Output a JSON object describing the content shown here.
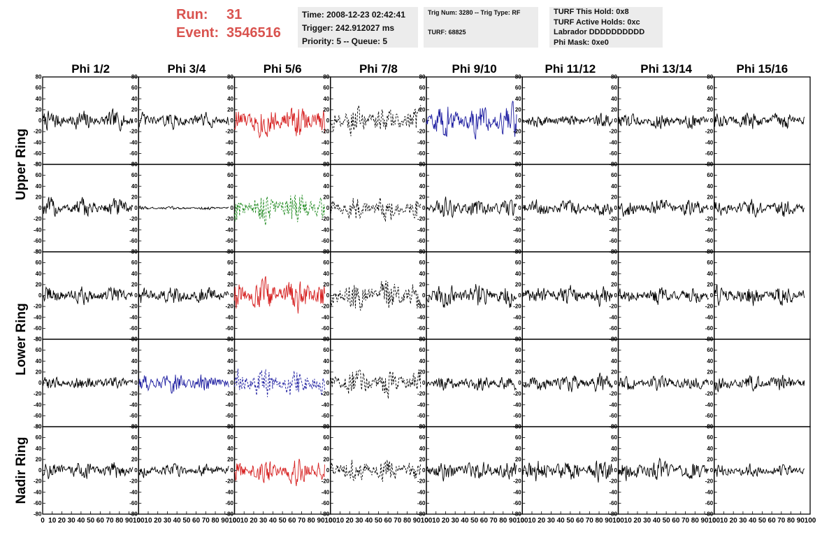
{
  "header": {
    "run_label": "Run:",
    "run_value": "31",
    "event_label": "Event:",
    "event_value": "3546516",
    "time_line": "Time: 2008-12-23 02:42:41",
    "trigger_line": "Trigger: 242.912027 ms",
    "priority_line": "Priority: 5 -- Queue: 5",
    "trig_num_line": "Trig Num: 3280 -- Trig Type: RF",
    "turf_line": "TURF: 68825",
    "turf_this_hold": "TURF This Hold: 0x8",
    "turf_active_holds": "TURF Active Holds: 0xc",
    "labrador": "Labrador DDDDDDDDDD",
    "phi_mask": "Phi Mask: 0xe0"
  },
  "chart_data": {
    "type": "line",
    "columns": [
      "Phi 1/2",
      "Phi 3/4",
      "Phi 5/6",
      "Phi 7/8",
      "Phi 9/10",
      "Phi 11/12",
      "Phi 13/14",
      "Phi 15/16"
    ],
    "ring_labels": [
      {
        "text": "Upper Ring",
        "rows": [
          0,
          1
        ]
      },
      {
        "text": "Lower Ring",
        "rows": [
          2,
          3
        ]
      },
      {
        "text": "Nadir Ring",
        "rows": [
          4
        ]
      }
    ],
    "xlim": [
      0,
      100
    ],
    "ylim": [
      -80,
      80
    ],
    "x_ticks": [
      0,
      10,
      20,
      30,
      40,
      50,
      60,
      70,
      80,
      90,
      100
    ],
    "y_ticks": [
      -80,
      -60,
      -40,
      -20,
      0,
      20,
      40,
      60,
      80
    ],
    "colors": {
      "black": "#000000",
      "red": "#d62020",
      "blue": "#1c1ca0",
      "green": "#1f8a1f"
    },
    "panels": [
      [
        {
          "color": "black",
          "dash": false,
          "amp": 18
        },
        {
          "color": "black",
          "dash": false,
          "amp": 14
        },
        {
          "color": "red",
          "dash": false,
          "amp": 30
        },
        {
          "color": "black",
          "dash": true,
          "amp": 26
        },
        {
          "color": "blue",
          "dash": false,
          "amp": 30
        },
        {
          "color": "black",
          "dash": false,
          "amp": 12
        },
        {
          "color": "black",
          "dash": false,
          "amp": 14
        },
        {
          "color": "black",
          "dash": false,
          "amp": 16
        }
      ],
      [
        {
          "color": "black",
          "dash": false,
          "amp": 18
        },
        {
          "color": "black",
          "dash": false,
          "amp": 3
        },
        {
          "color": "green",
          "dash": true,
          "amp": 28
        },
        {
          "color": "black",
          "dash": true,
          "amp": 22
        },
        {
          "color": "black",
          "dash": false,
          "amp": 18
        },
        {
          "color": "black",
          "dash": false,
          "amp": 16
        },
        {
          "color": "black",
          "dash": false,
          "amp": 16
        },
        {
          "color": "black",
          "dash": false,
          "amp": 16
        }
      ],
      [
        {
          "color": "black",
          "dash": false,
          "amp": 16
        },
        {
          "color": "black",
          "dash": false,
          "amp": 16
        },
        {
          "color": "red",
          "dash": false,
          "amp": 30
        },
        {
          "color": "black",
          "dash": true,
          "amp": 28
        },
        {
          "color": "black",
          "dash": false,
          "amp": 22
        },
        {
          "color": "black",
          "dash": false,
          "amp": 18
        },
        {
          "color": "black",
          "dash": false,
          "amp": 16
        },
        {
          "color": "black",
          "dash": false,
          "amp": 18
        }
      ],
      [
        {
          "color": "black",
          "dash": false,
          "amp": 12
        },
        {
          "color": "blue",
          "dash": false,
          "amp": 18
        },
        {
          "color": "blue",
          "dash": true,
          "amp": 28
        },
        {
          "color": "black",
          "dash": true,
          "amp": 24
        },
        {
          "color": "black",
          "dash": false,
          "amp": 14
        },
        {
          "color": "black",
          "dash": false,
          "amp": 16
        },
        {
          "color": "black",
          "dash": false,
          "amp": 14
        },
        {
          "color": "black",
          "dash": false,
          "amp": 14
        }
      ],
      [
        {
          "color": "black",
          "dash": false,
          "amp": 16
        },
        {
          "color": "black",
          "dash": false,
          "amp": 12
        },
        {
          "color": "red",
          "dash": false,
          "amp": 24
        },
        {
          "color": "black",
          "dash": true,
          "amp": 22
        },
        {
          "color": "black",
          "dash": false,
          "amp": 18
        },
        {
          "color": "black",
          "dash": false,
          "amp": 20
        },
        {
          "color": "black",
          "dash": false,
          "amp": 18
        },
        {
          "color": "black",
          "dash": false,
          "amp": 12
        }
      ]
    ]
  }
}
